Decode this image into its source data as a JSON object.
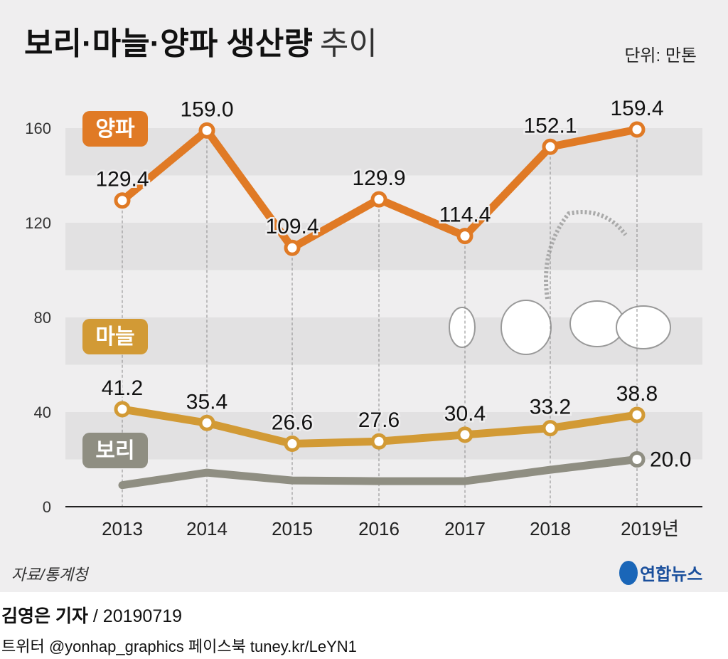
{
  "title_bold": "보리·마늘·양파 생산량",
  "title_light": "추이",
  "unit": "단위: 만톤",
  "source": "자료/통계청",
  "logo_text": "연합뉴스",
  "byline_name": "김영은 기자",
  "byline_date": "/ 20190719",
  "social": "트위터 @yonhap_graphics  페이스북 tuney.kr/LeYN1",
  "chart_data": {
    "type": "line",
    "categories": [
      "2013",
      "2014",
      "2015",
      "2016",
      "2017",
      "2018",
      "2019년"
    ],
    "ylim": [
      0,
      160
    ],
    "yticks": [
      0,
      40,
      80,
      120,
      160
    ],
    "grid": "alternating horizontal bands",
    "series": [
      {
        "name": "양파",
        "color": "#e07a25",
        "values": [
          129.4,
          159.0,
          109.4,
          129.9,
          114.4,
          152.1,
          159.4
        ],
        "labels": [
          "129.4",
          "159.0",
          "109.4",
          "129.9",
          "114.4",
          "152.1",
          "159.4"
        ]
      },
      {
        "name": "마늘",
        "color": "#d29a35",
        "values": [
          41.2,
          35.4,
          26.6,
          27.6,
          30.4,
          33.2,
          38.8
        ],
        "labels": [
          "41.2",
          "35.4",
          "26.6",
          "27.6",
          "30.4",
          "33.2",
          "38.8"
        ]
      },
      {
        "name": "보리",
        "color": "#8f8e82",
        "values": [
          9.1,
          14.4,
          11.1,
          10.8,
          10.8,
          15.6,
          20.0
        ],
        "labels": [
          "",
          "",
          "",
          "",
          "",
          "",
          "20.0"
        ]
      }
    ]
  }
}
